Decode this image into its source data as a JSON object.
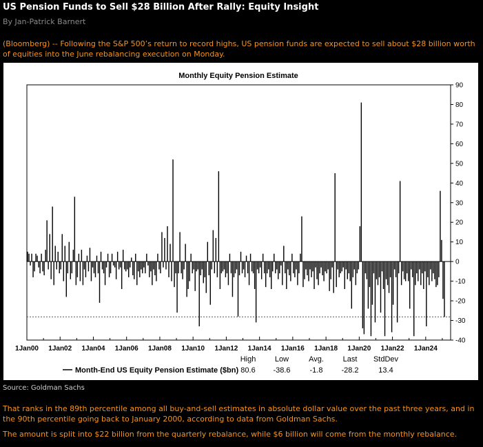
{
  "article": {
    "headline": "US Pension Funds to Sell $28 Billion After Rally: Equity Insight",
    "byline": "By Jan-Patrick Barnert",
    "paragraph1": "(Bloomberg) -- Following the S&P 500’s return to record highs, US pension funds are expected to sell about $28 billion worth of equities into the June rebalancing execution on Monday.",
    "source": "Source: Goldman Sachs",
    "paragraph2": "That ranks in the 89th percentile among all buy-and-sell estimates in absolute dollar value over the past three years, and in the 90th percentile going back to January 2000, according to data from Goldman Sachs.",
    "paragraph3": "The amount is split into $22 billion from the quarterly rebalance, while $6 billion will come from the monthly rebalance."
  },
  "chart_data": {
    "type": "bar",
    "title": "Monthly Equity Pension Estimate",
    "ylim": [
      -40,
      90
    ],
    "yticks": [
      90,
      80,
      70,
      60,
      50,
      40,
      30,
      20,
      10,
      0,
      -10,
      -20,
      -30,
      -40
    ],
    "xticks": [
      "1Jan00",
      "1Jan02",
      "1Jan04",
      "1Jan06",
      "1Jan08",
      "1Jan10",
      "1Jan12",
      "1Jan14",
      "1Jan16",
      "1Jan18",
      "1Jan20",
      "1Jan22",
      "1Jan24"
    ],
    "start_month": "2000-01",
    "reference_line": -28.2,
    "colors": {
      "bars": "#000000",
      "reference": "#555555"
    },
    "legend": {
      "label": "Month-End US Equity Pension Estimate ($bn)",
      "stats_headers": [
        "High",
        "Low",
        "Avg.",
        "Last",
        "StdDev"
      ],
      "stats_values": [
        "80.6",
        "-38.6",
        "-1.8",
        "-28.2",
        "13.4"
      ]
    },
    "series": [
      {
        "name": "Month-End US Equity Pension Estimate ($bn)",
        "values": [
          5,
          4,
          -2,
          4,
          -8,
          -5,
          4,
          3,
          -3,
          -6,
          4,
          -5,
          -7,
          6,
          21,
          -4,
          14,
          -9,
          28,
          -12,
          8,
          -4,
          5,
          -6,
          -4,
          14,
          -10,
          8,
          -18,
          -6,
          10,
          -9,
          -6,
          6,
          33,
          -12,
          -8,
          4,
          -10,
          6,
          -12,
          -4,
          -8,
          3,
          -5,
          7,
          -10,
          -3,
          -6,
          -8,
          3,
          -6,
          -21,
          5,
          -4,
          -6,
          -12,
          -3,
          4,
          -8,
          -6,
          4,
          -2,
          -3,
          -9,
          5,
          -4,
          -3,
          -14,
          6,
          -4,
          -5,
          -4,
          -8,
          -3,
          2,
          -7,
          -9,
          4,
          -12,
          -5,
          -8,
          -4,
          -6,
          -3,
          -6,
          4,
          -2,
          -8,
          -5,
          -12,
          -4,
          -7,
          -10,
          4,
          -4,
          -6,
          15,
          -3,
          12,
          -4,
          18,
          -8,
          9,
          -10,
          52,
          -13,
          -6,
          -26,
          -6,
          15,
          -6,
          -9,
          -4,
          9,
          -18,
          -14,
          -10,
          4,
          -6,
          -4,
          -15,
          -5,
          -4,
          -33,
          -7,
          -4,
          -11,
          -8,
          -16,
          10,
          -7,
          -22,
          -4,
          16,
          -6,
          12,
          -8,
          46,
          -14,
          -6,
          -5,
          -4,
          -8,
          -6,
          -12,
          4,
          -6,
          -18,
          -8,
          -6,
          -4,
          -28,
          -7,
          5,
          -6,
          -4,
          -8,
          3,
          -6,
          -12,
          4,
          -5,
          -6,
          -14,
          -31,
          -4,
          -6,
          -3,
          -9,
          4,
          -6,
          -13,
          -6,
          -4,
          -8,
          -14,
          -5,
          4,
          -6,
          -4,
          -9,
          -6,
          -2,
          -12,
          8,
          -6,
          -14,
          -4,
          -7,
          -10,
          4,
          -6,
          -8,
          -4,
          -12,
          -6,
          4,
          23,
          -13,
          -9,
          -4,
          -7,
          -10,
          -4,
          -8,
          -5,
          -14,
          -3,
          -9,
          -12,
          -6,
          -3,
          -7,
          -10,
          -5,
          -6,
          -4,
          -15,
          -9,
          -3,
          -16,
          45,
          -13,
          -4,
          -8,
          -6,
          -5,
          -3,
          -14,
          -4,
          -9,
          -6,
          -10,
          -24,
          -8,
          -4,
          -12,
          -6,
          -4,
          18,
          81,
          -34,
          -37,
          -6,
          -9,
          -24,
          -13,
          -38,
          -22,
          -6,
          -31,
          -9,
          -12,
          -8,
          -26,
          -5,
          -14,
          -38,
          -9,
          -12,
          -16,
          -8,
          -36,
          -22,
          -4,
          -8,
          -31,
          -6,
          41,
          -12,
          -5,
          -9,
          -10,
          -6,
          -10,
          -24,
          -4,
          -8,
          -38,
          -12,
          -6,
          -10,
          -4,
          -12,
          -6,
          -14,
          -5,
          -33,
          -8,
          -12,
          -4,
          -10,
          -6,
          -9,
          -13,
          -12,
          -8,
          36,
          11,
          -19,
          -28.2
        ]
      }
    ]
  }
}
